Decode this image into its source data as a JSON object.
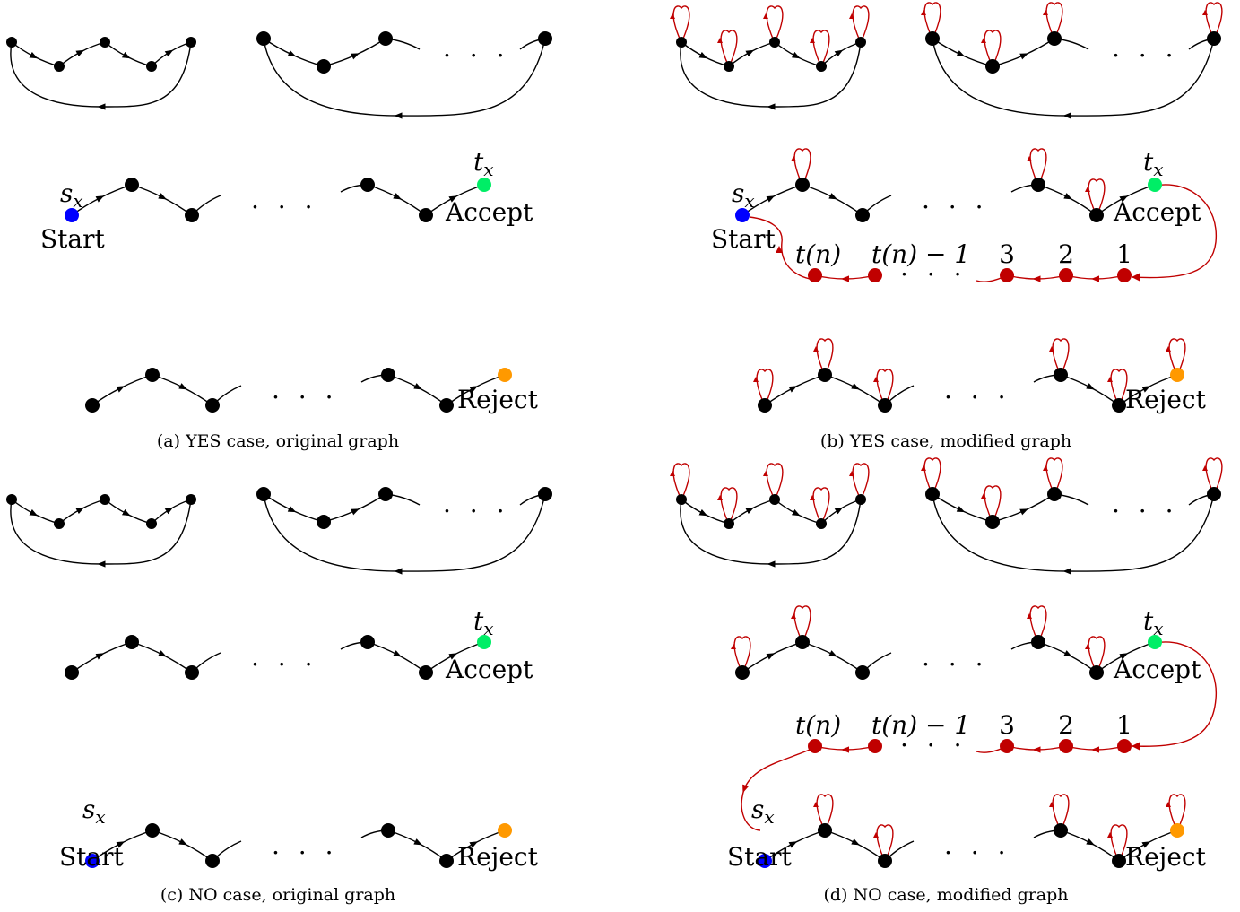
{
  "labels": {
    "start": "Start",
    "accept": "Accept",
    "reject": "Reject",
    "s_x": "s",
    "s_x_sub": "x",
    "t_x": "t",
    "t_x_sub": "x",
    "ellipsis": ". . .",
    "tn": "t(n)",
    "tn1": "t(n) − 1",
    "n3": "3",
    "n2": "2",
    "n1": "1"
  },
  "captions": {
    "a": "(a) YES case, original graph",
    "b": "(b) YES case, modified graph",
    "c": "(c) NO case, original graph",
    "d": "(d) NO case, modified graph"
  },
  "colors": {
    "node": "#000000",
    "start": "#0000ff",
    "accept": "#00ee66",
    "reject": "#ff9900",
    "counter": "#c00000"
  }
}
